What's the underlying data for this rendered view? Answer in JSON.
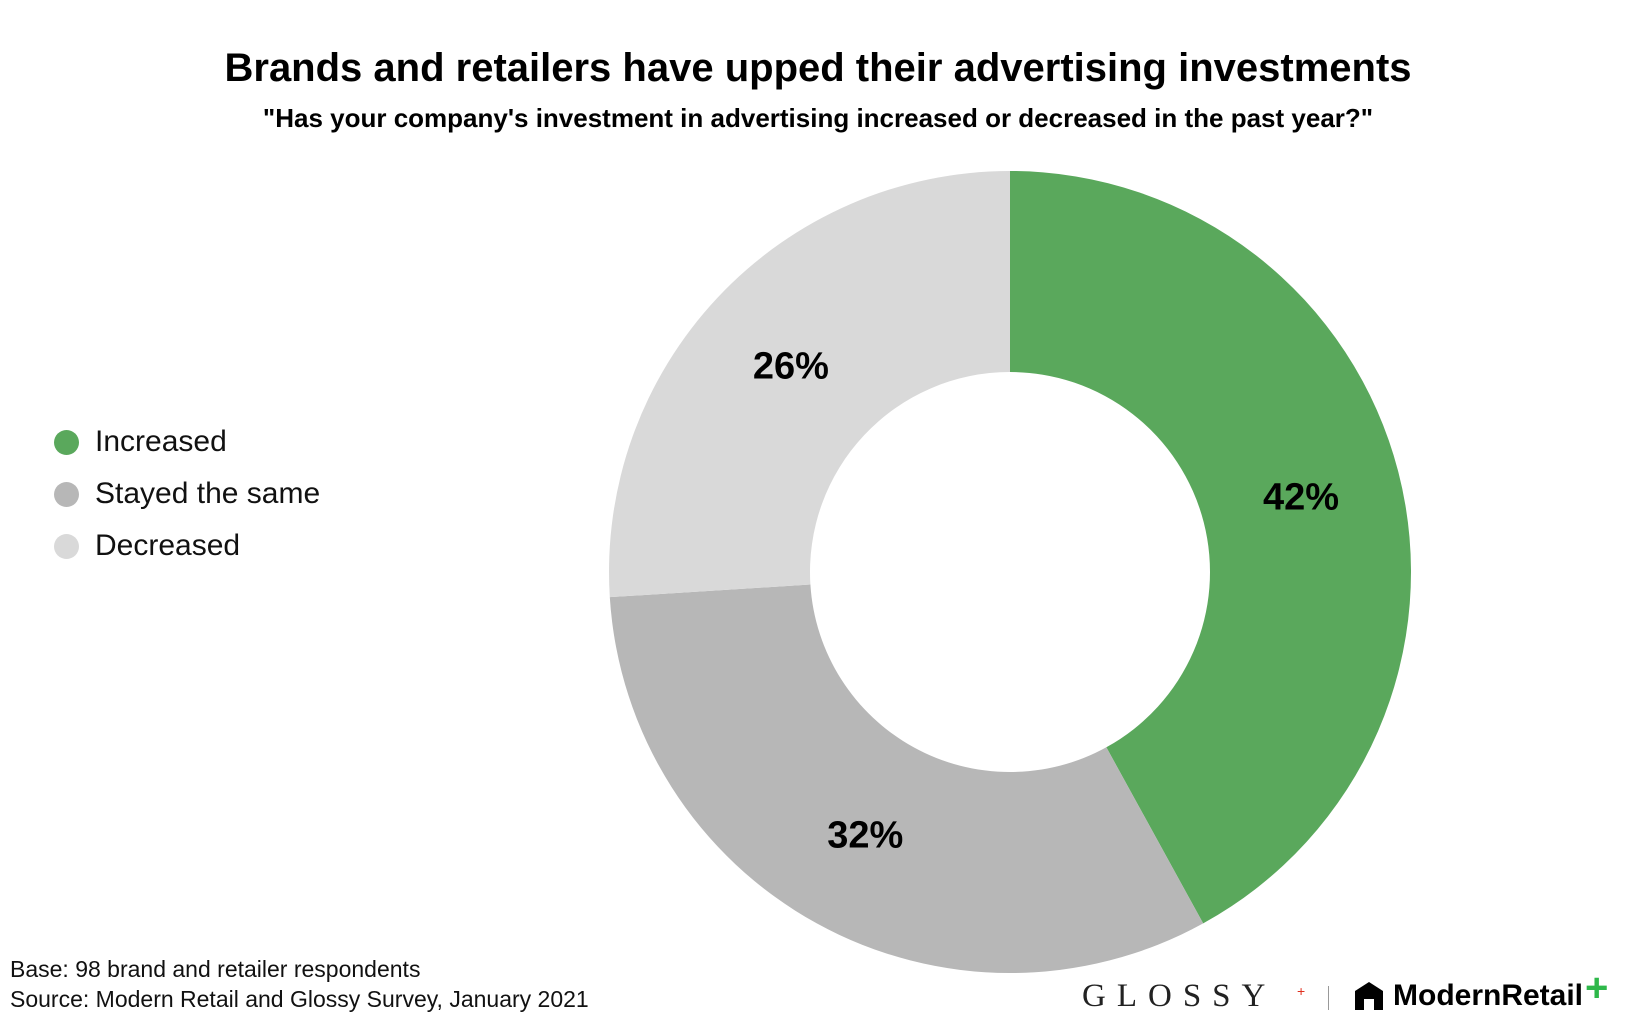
{
  "chart_data": {
    "type": "pie",
    "variant": "donut",
    "title": "Brands and retailers have upped their advertising investments",
    "subtitle": "\"Has your company's investment in advertising increased or decreased in the past year?\"",
    "categories": [
      "Increased",
      "Stayed the same",
      "Decreased"
    ],
    "values": [
      42,
      32,
      26
    ],
    "value_labels": [
      "42%",
      "32%",
      "26%"
    ],
    "colors": [
      "#5aa85c",
      "#b7b7b7",
      "#d9d9d9"
    ],
    "legend_position": "left"
  },
  "footnote": {
    "base": "Base: 98 brand and retailer respondents",
    "source": "Source: Modern Retail and Glossy Survey, January 2021"
  },
  "branding": {
    "glossy": "GLOSSY",
    "glossy_plus": "+",
    "modern_retail": "ModernRetail",
    "modern_retail_plus": "+",
    "glossy_icon": "glossy-wordmark",
    "modern_retail_icon": "house-icon",
    "modern_retail_accent": "#2eb84a"
  }
}
